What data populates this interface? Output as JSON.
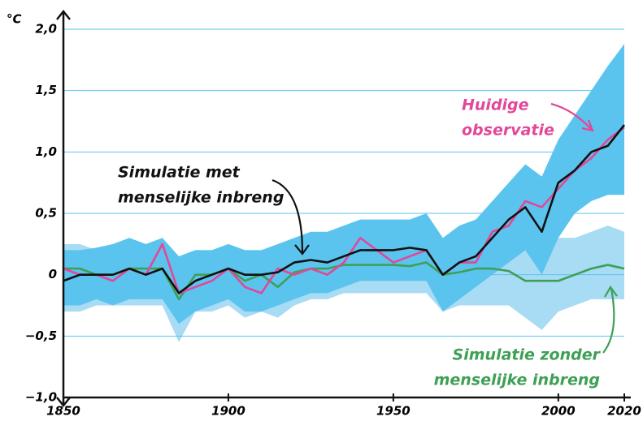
{
  "chart_data": {
    "type": "line",
    "y_label": "°C",
    "xlim": [
      1850,
      2020
    ],
    "ylim": [
      -1,
      2
    ],
    "xticks": [
      1850,
      1900,
      1950,
      2000,
      2020
    ],
    "yticks": [
      {
        "value": 2,
        "label": "2,0"
      },
      {
        "value": 1.5,
        "label": "1,5"
      },
      {
        "value": 1,
        "label": "1,0"
      },
      {
        "value": 0.5,
        "label": "0,5"
      },
      0,
      {
        "value": -0.5,
        "label": "−0,5"
      },
      {
        "value": -1,
        "label": "−1,0"
      }
    ],
    "grid": true,
    "x": [
      1850,
      1855,
      1860,
      1865,
      1870,
      1875,
      1880,
      1885,
      1890,
      1895,
      1900,
      1905,
      1910,
      1915,
      1920,
      1925,
      1930,
      1935,
      1940,
      1945,
      1950,
      1955,
      1960,
      1965,
      1970,
      1975,
      1980,
      1985,
      1990,
      1995,
      2000,
      2005,
      2010,
      2015,
      2020
    ],
    "series": [
      {
        "name": "Huidige observatie",
        "color": "#e2479a",
        "values": [
          0.05,
          0,
          0,
          -0.05,
          0.05,
          0,
          0.25,
          -0.15,
          -0.1,
          -0.05,
          0.05,
          -0.1,
          -0.15,
          0.05,
          0,
          0.05,
          0,
          0.1,
          0.3,
          0.2,
          0.1,
          0.15,
          0.2,
          0,
          0.1,
          0.1,
          0.35,
          0.4,
          0.6,
          0.55,
          0.7,
          0.85,
          0.95,
          1.1,
          1.2
        ]
      },
      {
        "name": "Simulatie met menselijke inbreng",
        "color": "#111111",
        "values": [
          -0.05,
          0,
          0,
          0,
          0.05,
          0,
          0.05,
          -0.15,
          -0.05,
          0,
          0.05,
          0,
          0,
          0.02,
          0.1,
          0.12,
          0.1,
          0.15,
          0.2,
          0.2,
          0.2,
          0.22,
          0.2,
          0,
          0.1,
          0.15,
          0.3,
          0.45,
          0.55,
          0.35,
          0.75,
          0.85,
          1,
          1.05,
          1.22
        ],
        "band_color": "#5bc4ee",
        "band_upper": [
          0.2,
          0.2,
          0.22,
          0.25,
          0.3,
          0.25,
          0.3,
          0.15,
          0.2,
          0.2,
          0.25,
          0.2,
          0.2,
          0.25,
          0.3,
          0.35,
          0.35,
          0.4,
          0.45,
          0.45,
          0.45,
          0.45,
          0.5,
          0.3,
          0.4,
          0.45,
          0.6,
          0.75,
          0.9,
          0.8,
          1.1,
          1.3,
          1.5,
          1.7,
          1.88
        ],
        "band_lower": [
          -0.25,
          -0.25,
          -0.2,
          -0.25,
          -0.2,
          -0.2,
          -0.2,
          -0.4,
          -0.3,
          -0.25,
          -0.2,
          -0.3,
          -0.3,
          -0.25,
          -0.2,
          -0.15,
          -0.15,
          -0.1,
          -0.05,
          -0.05,
          -0.05,
          -0.05,
          -0.05,
          -0.3,
          -0.2,
          -0.1,
          0,
          0.1,
          0.2,
          0,
          0.3,
          0.5,
          0.6,
          0.65,
          0.65
        ]
      },
      {
        "name": "Simulatie zonder menselijke inbreng",
        "color": "#3f9f55",
        "values": [
          0.05,
          0.05,
          0,
          0,
          0.05,
          0.05,
          0.05,
          -0.2,
          0,
          0,
          0.05,
          -0.05,
          0,
          -0.1,
          0.02,
          0.05,
          0.05,
          0.08,
          0.08,
          0.08,
          0.08,
          0.07,
          0.1,
          0,
          0.02,
          0.05,
          0.05,
          0.03,
          -0.05,
          -0.05,
          -0.05,
          0,
          0.05,
          0.08,
          0.05
        ],
        "band_color": "#a8dbf4",
        "band_upper": [
          0.25,
          0.25,
          0.2,
          0.2,
          0.25,
          0.2,
          0.25,
          0.15,
          0.2,
          0.2,
          0.25,
          0.2,
          0.2,
          0.15,
          0.2,
          0.25,
          0.25,
          0.25,
          0.25,
          0.25,
          0.3,
          0.25,
          0.3,
          0.2,
          0.25,
          0.3,
          0.3,
          0.3,
          0.3,
          0.25,
          0.3,
          0.3,
          0.35,
          0.4,
          0.35
        ],
        "band_lower": [
          -0.3,
          -0.3,
          -0.25,
          -0.25,
          -0.25,
          -0.25,
          -0.25,
          -0.55,
          -0.3,
          -0.3,
          -0.25,
          -0.35,
          -0.3,
          -0.35,
          -0.25,
          -0.2,
          -0.2,
          -0.15,
          -0.15,
          -0.15,
          -0.15,
          -0.15,
          -0.15,
          -0.3,
          -0.25,
          -0.25,
          -0.25,
          -0.25,
          -0.35,
          -0.45,
          -0.3,
          -0.25,
          -0.2,
          -0.2,
          -0.2
        ]
      }
    ],
    "annotations": [
      {
        "lines": [
          "Huidige",
          "observatie"
        ],
        "color": "#e2479a"
      },
      {
        "lines": [
          "Simulatie met",
          "menselijke inbreng"
        ],
        "color": "#111111"
      },
      {
        "lines": [
          "Simulatie zonder",
          "menselijke inbreng"
        ],
        "color": "#3f9f55"
      }
    ]
  }
}
